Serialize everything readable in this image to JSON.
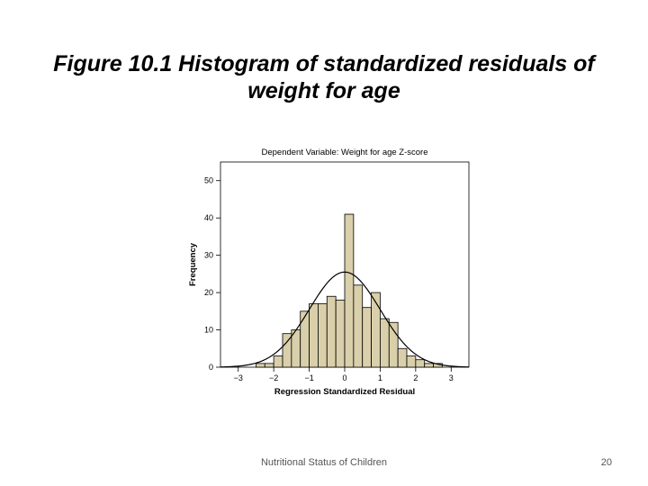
{
  "slide": {
    "title": "Figure 10.1 Histogram of standardized residuals of weight for age",
    "footer": "Nutritional Status of Children",
    "page_number": "20"
  },
  "chart_data": {
    "type": "bar",
    "title": "Dependent Variable: Weight for age Z-score",
    "xlabel": "Regression Standardized Residual",
    "ylabel": "Frequency",
    "xlim": [
      -3.5,
      3.5
    ],
    "ylim": [
      0,
      55
    ],
    "xticks": [
      -3,
      -2,
      -1,
      0,
      1,
      2,
      3
    ],
    "xtick_labels": [
      "−3",
      "−2",
      "−1",
      "0",
      "1",
      "2",
      "3"
    ],
    "yticks": [
      0,
      10,
      20,
      30,
      40,
      50
    ],
    "bin_width": 0.25,
    "bin_starts": [
      -3.0,
      -2.75,
      -2.5,
      -2.25,
      -2.0,
      -1.75,
      -1.5,
      -1.25,
      -1.0,
      -0.75,
      -0.5,
      -0.25,
      0.0,
      0.25,
      0.5,
      0.75,
      1.0,
      1.25,
      1.5,
      1.75,
      2.0,
      2.25,
      2.5,
      2.75
    ],
    "values": [
      0,
      0,
      1,
      1,
      3,
      9,
      10,
      15,
      17,
      17,
      19,
      18,
      41,
      22,
      16,
      20,
      13,
      12,
      5,
      3,
      2,
      1,
      1,
      0
    ],
    "normal_curve": {
      "mean": 0,
      "sd": 1,
      "peak": 25.5
    },
    "grid": false,
    "colors": {
      "bar_fill": "#d9cfaa",
      "bar_stroke": "#000000",
      "curve": "#000000"
    }
  }
}
